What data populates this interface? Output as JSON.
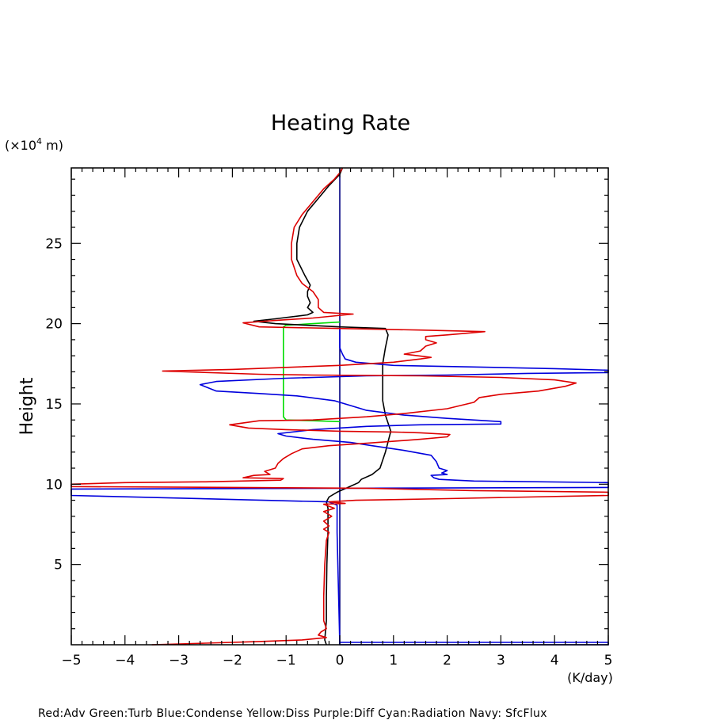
{
  "chart_data": {
    "type": "line",
    "title": "Heating Rate",
    "ylabel": "Height",
    "yunit_prefix": "(×10",
    "yunit_exp": "4",
    "yunit_suffix": " m)",
    "xunit": "(K/day)",
    "xlim": [
      -5,
      5
    ],
    "ylim": [
      0,
      29.7
    ],
    "xticks": [
      -5,
      -4,
      -3,
      -2,
      -1,
      0,
      1,
      2,
      3,
      4,
      5
    ],
    "yticks": [
      5,
      10,
      15,
      20,
      25
    ],
    "xtick_labels": [
      "−5",
      "−4",
      "−3",
      "−2",
      "−1",
      "0",
      "1",
      "2",
      "3",
      "4",
      "5"
    ],
    "ytick_labels": [
      "5",
      "10",
      "15",
      "20",
      "25"
    ],
    "grid": false,
    "series": [
      {
        "name": "Navy",
        "color": "#000080",
        "points": [
          [
            0,
            0
          ],
          [
            0,
            29.7
          ]
        ]
      },
      {
        "name": "Green",
        "color": "#00dd00",
        "points": [
          [
            0,
            20.1
          ],
          [
            -0.5,
            20.0
          ],
          [
            -1.0,
            19.9
          ],
          [
            -1.05,
            19.8
          ],
          [
            -1.05,
            17.0
          ],
          [
            -1.05,
            14.2
          ],
          [
            -1.0,
            14.0
          ],
          [
            -0.5,
            13.95
          ],
          [
            0,
            13.9
          ]
        ]
      },
      {
        "name": "Black",
        "color": "#000000",
        "points": [
          [
            -0.25,
            0.0
          ],
          [
            -0.28,
            0.3
          ],
          [
            -0.25,
            1.5
          ],
          [
            -0.25,
            3.0
          ],
          [
            -0.24,
            5.0
          ],
          [
            -0.22,
            7.0
          ],
          [
            -0.22,
            8.5
          ],
          [
            -0.25,
            8.9
          ],
          [
            -0.2,
            9.2
          ],
          [
            -0.05,
            9.5
          ],
          [
            0.15,
            9.8
          ],
          [
            0.35,
            10.1
          ],
          [
            0.4,
            10.3
          ],
          [
            0.6,
            10.6
          ],
          [
            0.75,
            11.0
          ],
          [
            0.85,
            12.0
          ],
          [
            0.95,
            13.3
          ],
          [
            0.85,
            14.3
          ],
          [
            0.8,
            15.2
          ],
          [
            0.8,
            16.5
          ],
          [
            0.8,
            17.5
          ],
          [
            0.85,
            18.5
          ],
          [
            0.9,
            19.3
          ],
          [
            0.85,
            19.7
          ],
          [
            0,
            19.8
          ],
          [
            -1.2,
            20.0
          ],
          [
            -1.6,
            20.15
          ],
          [
            -1.2,
            20.3
          ],
          [
            -0.6,
            20.55
          ],
          [
            -0.5,
            20.7
          ],
          [
            -0.6,
            21.0
          ],
          [
            -0.55,
            21.3
          ],
          [
            -0.6,
            21.7
          ],
          [
            -0.6,
            22.0
          ],
          [
            -0.55,
            22.4
          ],
          [
            -0.65,
            23.0
          ],
          [
            -0.8,
            24.0
          ],
          [
            -0.8,
            25.0
          ],
          [
            -0.75,
            26.0
          ],
          [
            -0.6,
            27.0
          ],
          [
            -0.4,
            27.8
          ],
          [
            -0.2,
            28.6
          ],
          [
            0,
            29.3
          ],
          [
            0.05,
            29.7
          ]
        ]
      },
      {
        "name": "Blue",
        "color": "#0000dd",
        "points": [
          [
            0,
            0.15
          ],
          [
            5,
            0.15
          ],
          [
            5,
            0.0
          ],
          [
            0,
            0.0
          ],
          [
            -0.05,
            7.0
          ],
          [
            -0.05,
            8.7
          ],
          [
            -0.2,
            8.9
          ],
          [
            -5,
            9.3
          ],
          [
            -5,
            9.7
          ],
          [
            0,
            9.75
          ],
          [
            5,
            9.8
          ],
          [
            5,
            10.1
          ],
          [
            2.5,
            10.2
          ],
          [
            1.85,
            10.3
          ],
          [
            1.75,
            10.4
          ],
          [
            1.7,
            10.55
          ],
          [
            2.0,
            10.6
          ],
          [
            1.9,
            10.7
          ],
          [
            2.0,
            10.85
          ],
          [
            1.85,
            11.0
          ],
          [
            1.8,
            11.4
          ],
          [
            1.7,
            11.8
          ],
          [
            1.2,
            12.1
          ],
          [
            0.6,
            12.4
          ],
          [
            0.2,
            12.6
          ],
          [
            -0.5,
            12.8
          ],
          [
            -1.0,
            13.0
          ],
          [
            -1.15,
            13.15
          ],
          [
            -0.5,
            13.4
          ],
          [
            0.5,
            13.6
          ],
          [
            1.5,
            13.7
          ],
          [
            3.0,
            13.75
          ],
          [
            3.0,
            13.9
          ],
          [
            2.0,
            14.1
          ],
          [
            1.2,
            14.3
          ],
          [
            0.5,
            14.6
          ],
          [
            0.2,
            14.9
          ],
          [
            -0.1,
            15.2
          ],
          [
            -0.8,
            15.5
          ],
          [
            -1.5,
            15.65
          ],
          [
            -2.3,
            15.8
          ],
          [
            -2.6,
            16.2
          ],
          [
            -2.3,
            16.4
          ],
          [
            -1.0,
            16.6
          ],
          [
            0.5,
            16.75
          ],
          [
            2.0,
            16.8
          ],
          [
            3.5,
            16.9
          ],
          [
            5,
            16.95
          ],
          [
            5,
            17.1
          ],
          [
            4.0,
            17.2
          ],
          [
            2.5,
            17.3
          ],
          [
            1.0,
            17.4
          ],
          [
            0.3,
            17.6
          ],
          [
            0.1,
            17.8
          ],
          [
            0.05,
            18.1
          ],
          [
            0,
            18.5
          ],
          [
            0,
            19.0
          ],
          [
            0,
            19.7
          ]
        ]
      },
      {
        "name": "Red",
        "color": "#dd0000",
        "points": [
          [
            -3.5,
            0.0
          ],
          [
            -2.5,
            0.1
          ],
          [
            -1.5,
            0.2
          ],
          [
            -0.7,
            0.3
          ],
          [
            -0.25,
            0.45
          ],
          [
            -0.4,
            0.6
          ],
          [
            -0.35,
            0.8
          ],
          [
            -0.25,
            1.0
          ],
          [
            -0.3,
            1.5
          ],
          [
            -0.3,
            3.0
          ],
          [
            -0.28,
            5.0
          ],
          [
            -0.25,
            6.5
          ],
          [
            -0.2,
            7.0
          ],
          [
            -0.3,
            7.2
          ],
          [
            -0.2,
            7.4
          ],
          [
            -0.3,
            7.7
          ],
          [
            -0.15,
            8.0
          ],
          [
            -0.3,
            8.3
          ],
          [
            -0.1,
            8.5
          ],
          [
            -0.3,
            8.75
          ],
          [
            0.1,
            8.8
          ],
          [
            -0.2,
            8.9
          ],
          [
            0.3,
            9.0
          ],
          [
            2.0,
            9.1
          ],
          [
            5,
            9.3
          ],
          [
            5,
            9.5
          ],
          [
            2.5,
            9.6
          ],
          [
            0.5,
            9.75
          ],
          [
            -5,
            9.85
          ],
          [
            -5,
            10.0
          ],
          [
            -4.5,
            10.05
          ],
          [
            -4.0,
            10.1
          ],
          [
            -2.5,
            10.15
          ],
          [
            -1.1,
            10.25
          ],
          [
            -1.05,
            10.35
          ],
          [
            -1.8,
            10.4
          ],
          [
            -1.6,
            10.55
          ],
          [
            -1.3,
            10.6
          ],
          [
            -1.4,
            10.8
          ],
          [
            -1.2,
            11.0
          ],
          [
            -1.15,
            11.3
          ],
          [
            -1.05,
            11.6
          ],
          [
            -0.9,
            11.9
          ],
          [
            -0.7,
            12.2
          ],
          [
            -0.2,
            12.4
          ],
          [
            0.5,
            12.55
          ],
          [
            1.5,
            12.8
          ],
          [
            2.0,
            12.95
          ],
          [
            2.05,
            13.1
          ],
          [
            1.5,
            13.2
          ],
          [
            1.0,
            13.25
          ],
          [
            0,
            13.3
          ],
          [
            -1.0,
            13.4
          ],
          [
            -1.7,
            13.5
          ],
          [
            -2.05,
            13.7
          ],
          [
            -1.5,
            13.95
          ],
          [
            -0.5,
            14.0
          ],
          [
            0.5,
            14.2
          ],
          [
            1.2,
            14.4
          ],
          [
            2.0,
            14.7
          ],
          [
            2.5,
            15.1
          ],
          [
            2.6,
            15.4
          ],
          [
            3.0,
            15.6
          ],
          [
            3.7,
            15.8
          ],
          [
            4.2,
            16.1
          ],
          [
            4.4,
            16.3
          ],
          [
            4.0,
            16.5
          ],
          [
            3.0,
            16.65
          ],
          [
            1.5,
            16.75
          ],
          [
            -0.5,
            16.8
          ],
          [
            -1.5,
            16.85
          ],
          [
            -3.3,
            17.05
          ],
          [
            -2.0,
            17.15
          ],
          [
            0,
            17.4
          ],
          [
            1.0,
            17.6
          ],
          [
            1.5,
            17.8
          ],
          [
            1.7,
            17.9
          ],
          [
            1.2,
            18.1
          ],
          [
            1.5,
            18.3
          ],
          [
            1.6,
            18.6
          ],
          [
            1.8,
            18.8
          ],
          [
            1.6,
            19.0
          ],
          [
            1.6,
            19.2
          ],
          [
            2.0,
            19.3
          ],
          [
            2.7,
            19.5
          ],
          [
            1.5,
            19.6
          ],
          [
            0,
            19.7
          ],
          [
            -1.5,
            19.8
          ],
          [
            -1.8,
            20.05
          ],
          [
            -1.2,
            20.2
          ],
          [
            -0.5,
            20.35
          ],
          [
            0.25,
            20.6
          ],
          [
            -0.3,
            20.7
          ],
          [
            -0.4,
            21.0
          ],
          [
            -0.4,
            21.5
          ],
          [
            -0.5,
            22.0
          ],
          [
            -0.7,
            22.5
          ],
          [
            -0.8,
            23.0
          ],
          [
            -0.9,
            24.0
          ],
          [
            -0.9,
            25.0
          ],
          [
            -0.85,
            26.0
          ],
          [
            -0.7,
            26.8
          ],
          [
            -0.5,
            27.6
          ],
          [
            -0.3,
            28.4
          ],
          [
            -0.1,
            29.0
          ],
          [
            0,
            29.4
          ],
          [
            0.05,
            29.7
          ]
        ]
      }
    ],
    "legend_text": "Red:Adv  Green:Turb  Blue:Condense  Yellow:Diss  Purple:Diff  Cyan:Radiation  Navy: SfcFlux",
    "legend_placement": "bottom"
  }
}
